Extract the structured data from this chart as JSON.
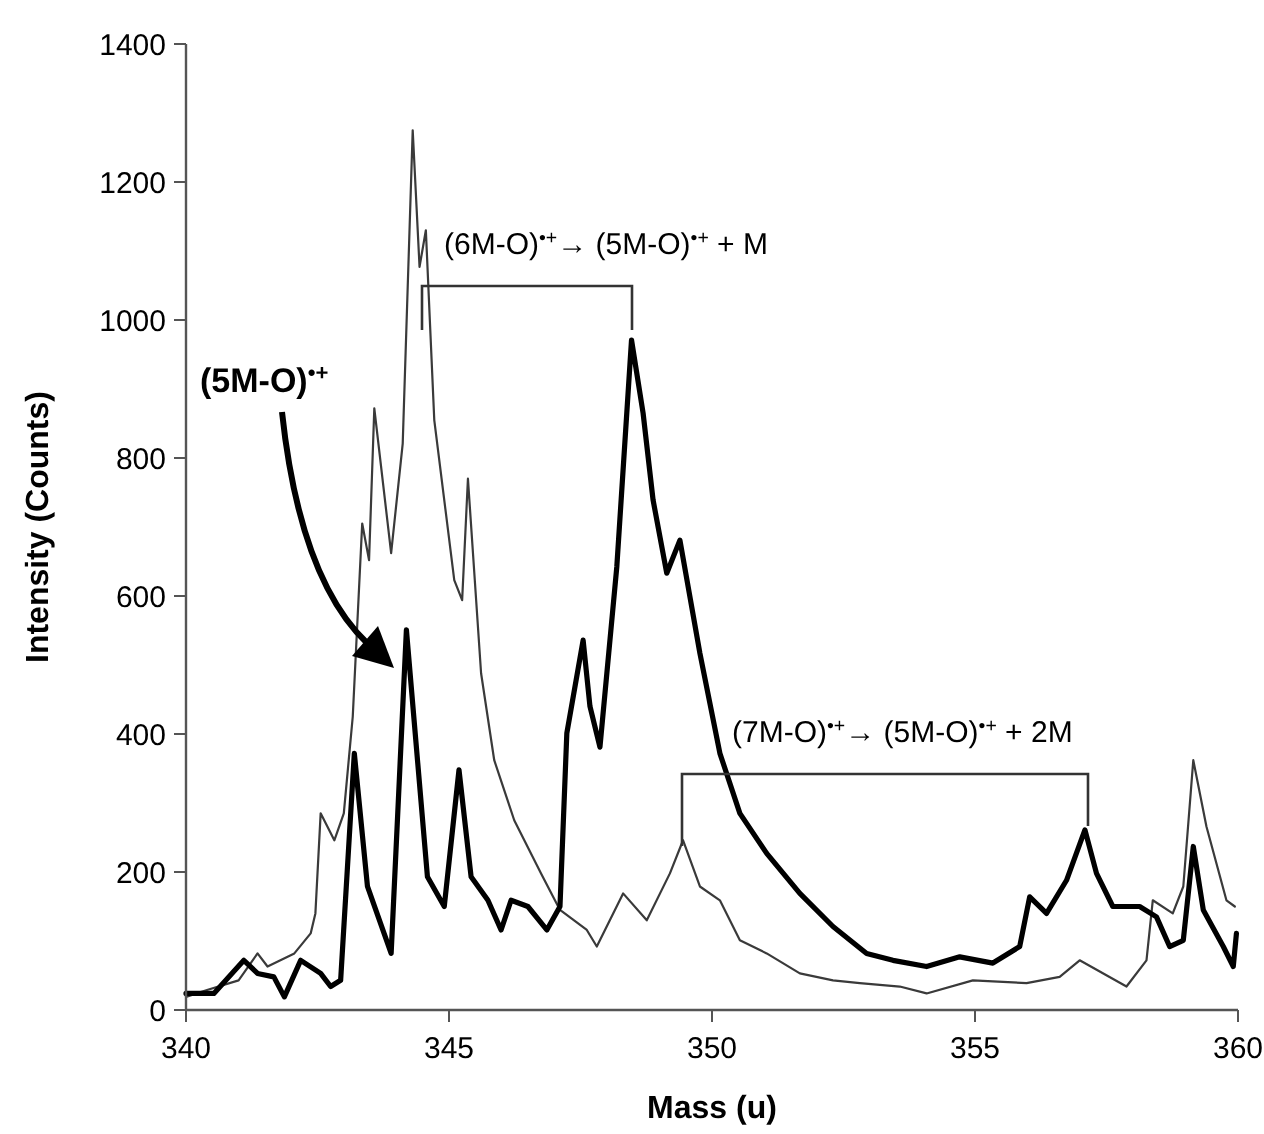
{
  "chart_data": {
    "type": "line",
    "xlabel": "Mass (u)",
    "ylabel": "Intensity (Counts)",
    "xlim": [
      340,
      360
    ],
    "xticks": [
      340,
      345,
      350,
      355,
      360
    ],
    "ylim": [
      0,
      1400
    ],
    "yticks": [
      0,
      200,
      400,
      600,
      800,
      1000,
      1200,
      1400
    ],
    "grid": false,
    "marker": "none",
    "line_style": "solid",
    "series": [
      {
        "color": "#3a3a3a",
        "x": [
          340,
          340.4,
          341.0,
          341.36,
          341.55,
          342.06,
          342.37,
          342.46,
          342.56,
          342.82,
          343.0,
          343.17,
          343.35,
          343.48,
          343.58,
          343.9,
          344.12,
          344.31,
          344.44,
          344.56,
          344.72,
          345.1,
          345.25,
          345.36,
          345.61,
          345.86,
          346.24,
          346.75,
          347.11,
          347.62,
          347.81,
          348.31,
          348.76,
          349.2,
          349.45,
          349.77,
          350.15,
          350.53,
          351.04,
          351.67,
          352.3,
          352.81,
          353.57,
          354.08,
          354.96,
          355.98,
          356.61,
          356.99,
          357.88,
          358.26,
          358.38,
          358.76,
          358.96,
          359.15,
          359.4,
          359.78,
          359.94
        ],
        "values": [
          19,
          29,
          43,
          82,
          63,
          82,
          111,
          140,
          285,
          246,
          285,
          425,
          705,
          652,
          872,
          662,
          821,
          1275,
          1077,
          1130,
          855,
          623,
          594,
          770,
          488,
          362,
          275,
          198,
          145,
          116,
          92,
          169,
          130,
          198,
          246,
          179,
          159,
          101,
          82,
          53,
          43,
          39,
          34,
          24,
          43,
          39,
          48,
          72,
          34,
          72,
          159,
          140,
          179,
          362,
          266,
          159,
          150
        ]
      },
      {
        "color": "#000000",
        "x": [
          340,
          340.53,
          341.1,
          341.36,
          341.67,
          341.87,
          342.18,
          342.56,
          342.75,
          342.94,
          343.2,
          343.45,
          343.9,
          344.19,
          344.59,
          344.91,
          345.19,
          345.42,
          345.74,
          345.99,
          346.18,
          346.5,
          346.86,
          347.11,
          347.24,
          347.55,
          347.68,
          347.87,
          348.19,
          348.47,
          348.69,
          348.88,
          349.14,
          349.39,
          349.77,
          350.15,
          350.53,
          351.04,
          351.67,
          352.3,
          352.94,
          353.44,
          354.08,
          354.71,
          355.34,
          355.85,
          356.04,
          356.36,
          356.74,
          357.09,
          357.31,
          357.62,
          358.13,
          358.45,
          358.7,
          358.96,
          359.15,
          359.34,
          359.72,
          359.91,
          359.97
        ],
        "values": [
          24,
          24,
          72,
          53,
          48,
          19,
          72,
          53,
          34,
          43,
          372,
          179,
          82,
          551,
          193,
          150,
          348,
          193,
          159,
          116,
          159,
          150,
          116,
          150,
          401,
          536,
          440,
          381,
          642,
          971,
          865,
          739,
          633,
          681,
          517,
          372,
          285,
          227,
          169,
          121,
          82,
          72,
          63,
          77,
          68,
          92,
          164,
          140,
          188,
          261,
          198,
          150,
          150,
          135,
          92,
          101,
          237,
          145,
          92,
          63,
          111
        ]
      }
    ],
    "annotations": [
      "(5M-O)$^{•+}$",
      "(6M-O)$^{•+}$→ (5M-O)$^{•+}$ + M",
      "(7M-O)$^{•+}$→ (5M-O)$^{•+}$ + 2M"
    ]
  }
}
